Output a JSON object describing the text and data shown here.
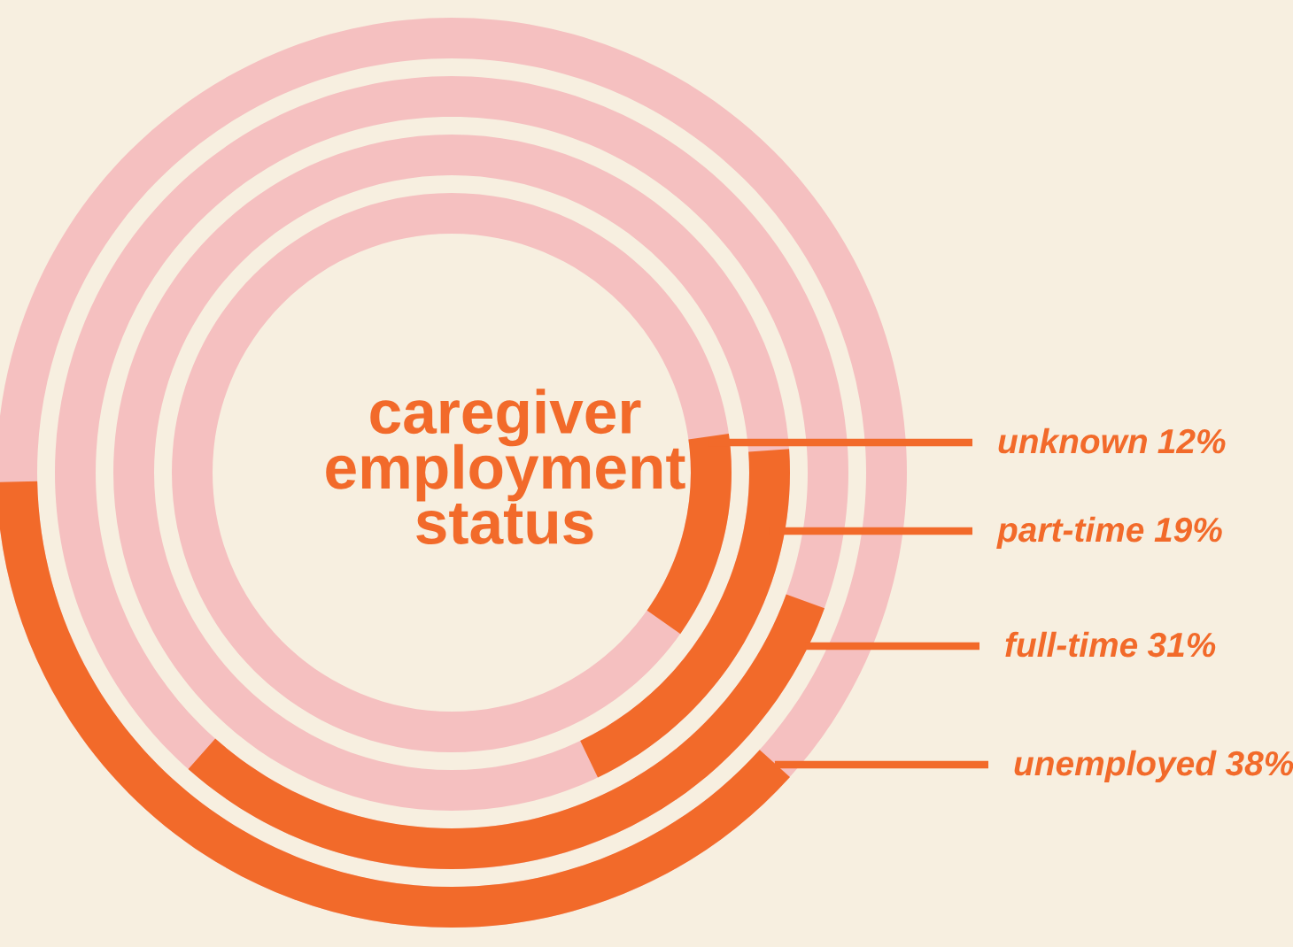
{
  "chart_data": {
    "type": "other",
    "title": "caregiver\nemployment\nstatus",
    "categories": [
      "unknown",
      "part-time",
      "full-time",
      "unemployed"
    ],
    "values": [
      12,
      19,
      31,
      38
    ],
    "value_labels": [
      "12%",
      "19%",
      "31%",
      "38%"
    ],
    "data_labels": true,
    "color": "#f26a2a"
  }
}
